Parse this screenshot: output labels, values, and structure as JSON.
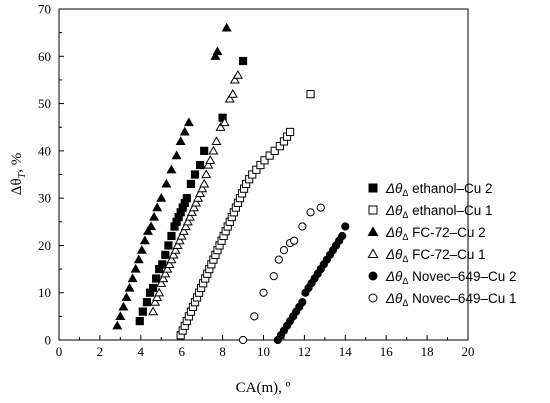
{
  "chart_data": {
    "type": "scatter",
    "xlabel": "CA(m), º",
    "ylabel": "Δθ",
    "ylabel_sub": "T",
    "ylabel_unit": ", %",
    "xlim": [
      0,
      20
    ],
    "ylim": [
      0,
      70
    ],
    "x_ticks": [
      0,
      2,
      4,
      6,
      8,
      10,
      12,
      14,
      16,
      18,
      20
    ],
    "y_ticks": [
      0,
      10,
      20,
      30,
      40,
      50,
      60,
      70
    ],
    "grid": false,
    "legend_position": "right",
    "legend_prefix": "Δθ",
    "legend_sub": "Δ",
    "series": [
      {
        "name": "ethanol–Cu 2",
        "marker": "square-filled",
        "x": [
          3.95,
          4.1,
          4.3,
          4.45,
          4.6,
          4.75,
          4.9,
          5.05,
          5.2,
          5.35,
          5.5,
          5.65,
          5.75,
          5.85,
          5.95,
          6.05,
          6.15,
          6.25,
          6.45,
          6.65,
          6.9,
          7.1,
          8.0,
          9.0
        ],
        "y": [
          4,
          6,
          8,
          10,
          11,
          13,
          15,
          16,
          18,
          20,
          22,
          24,
          25,
          26,
          27,
          28,
          29,
          30,
          33,
          35,
          37,
          40,
          47,
          59
        ]
      },
      {
        "name": "ethanol–Cu 1",
        "marker": "square-open",
        "x": [
          5.95,
          6.05,
          6.15,
          6.25,
          6.35,
          6.45,
          6.55,
          6.65,
          6.75,
          6.85,
          6.95,
          7.05,
          7.15,
          7.25,
          7.35,
          7.45,
          7.55,
          7.65,
          7.75,
          7.85,
          7.95,
          8.05,
          8.15,
          8.25,
          8.35,
          8.45,
          8.55,
          8.65,
          8.75,
          8.85,
          8.95,
          9.05,
          9.15,
          9.3,
          9.45,
          9.65,
          9.85,
          10.05,
          10.3,
          10.55,
          10.8,
          11.0,
          11.15,
          11.3,
          12.3
        ],
        "y": [
          1,
          2,
          3,
          4,
          5,
          6,
          7,
          8,
          9,
          10,
          11,
          12,
          13,
          14,
          15,
          16,
          17,
          18,
          19,
          20,
          21,
          22,
          23,
          24,
          25,
          26,
          27,
          28,
          29,
          30,
          31,
          32,
          33,
          34,
          35,
          36,
          37,
          38,
          39,
          40,
          41,
          42,
          43,
          44,
          52
        ]
      },
      {
        "name": "FC-72–Cu 2",
        "marker": "triangle-filled",
        "x": [
          2.85,
          3.0,
          3.15,
          3.3,
          3.45,
          3.6,
          3.75,
          3.9,
          4.05,
          4.2,
          4.35,
          4.5,
          4.65,
          4.8,
          5.0,
          5.25,
          5.5,
          5.75,
          5.95,
          6.15,
          6.35,
          7.65,
          7.75,
          8.2
        ],
        "y": [
          3,
          5,
          7,
          9,
          11,
          13,
          15,
          17,
          19,
          21,
          23,
          24,
          26,
          28,
          30,
          33,
          36,
          39,
          42,
          44,
          46,
          60,
          61,
          66
        ]
      },
      {
        "name": "FC-72–Cu 1",
        "marker": "triangle-open",
        "x": [
          4.6,
          4.7,
          4.8,
          4.9,
          5.0,
          5.1,
          5.2,
          5.3,
          5.4,
          5.5,
          5.6,
          5.7,
          5.8,
          5.9,
          6.0,
          6.1,
          6.2,
          6.3,
          6.4,
          6.5,
          6.6,
          6.7,
          6.8,
          6.9,
          7.0,
          7.1,
          7.2,
          7.3,
          7.4,
          7.55,
          7.7,
          7.9,
          8.1,
          8.35,
          8.5,
          8.6,
          8.75
        ],
        "y": [
          6,
          8,
          9,
          10,
          12,
          13,
          14,
          15,
          16,
          17,
          18,
          19,
          20,
          21,
          22,
          23,
          24,
          25,
          26,
          27,
          28,
          29,
          30,
          31,
          32,
          33,
          35,
          37,
          38,
          40,
          42,
          45,
          46,
          51,
          52,
          55,
          56
        ]
      },
      {
        "name": "Novec–649–Cu 2",
        "marker": "circle-filled",
        "x": [
          10.7,
          10.85,
          11.0,
          11.15,
          11.3,
          11.45,
          11.6,
          11.75,
          11.9,
          12.05,
          12.2,
          12.35,
          12.5,
          12.65,
          12.8,
          12.95,
          13.1,
          13.25,
          13.4,
          13.55,
          13.7,
          13.85,
          14.0
        ],
        "y": [
          0,
          1,
          2,
          3,
          4,
          5,
          6,
          7,
          8,
          10,
          11,
          12,
          13,
          14,
          15,
          16,
          17,
          18,
          19,
          20,
          21,
          22,
          24
        ]
      },
      {
        "name": "Novec–649–Cu 1",
        "marker": "circle-open",
        "x": [
          9.0,
          9.55,
          10.0,
          10.5,
          10.75,
          11.0,
          11.3,
          11.5,
          11.9,
          12.3,
          12.8
        ],
        "y": [
          0,
          5,
          10,
          13.5,
          17,
          19,
          20.5,
          21,
          24,
          27,
          28
        ]
      }
    ]
  }
}
